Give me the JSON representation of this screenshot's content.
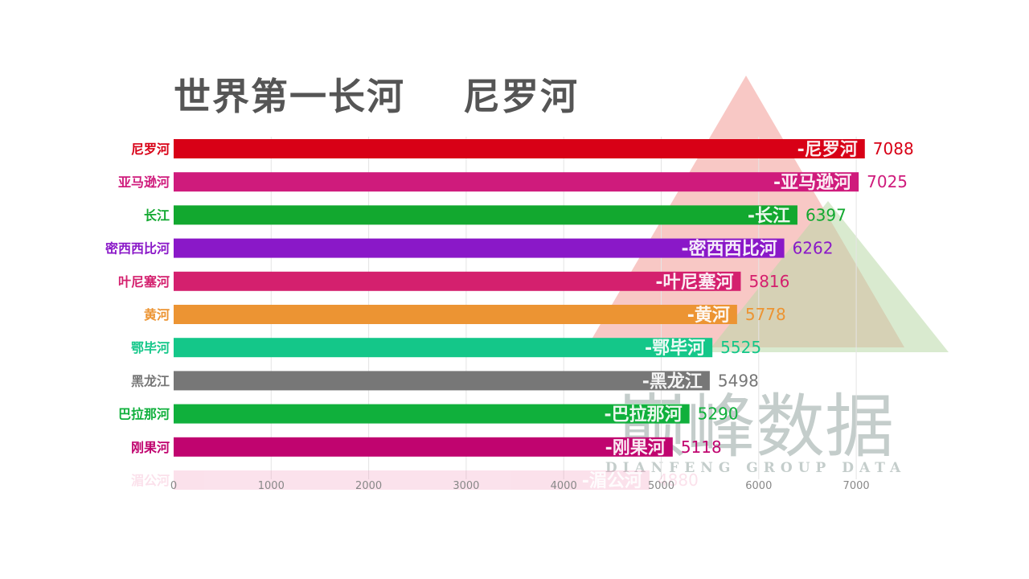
{
  "title": "世界第一长河",
  "subtitle": "尼罗河",
  "chart_data": {
    "type": "bar",
    "orientation": "horizontal",
    "categories": [
      "尼罗河",
      "亚马逊河",
      "长江",
      "密西西比河",
      "叶尼塞河",
      "黄河",
      "鄂毕河",
      "黑龙江",
      "巴拉那河",
      "刚果河",
      "湄公河"
    ],
    "values": [
      7088,
      7025,
      6397,
      6262,
      5816,
      5778,
      5525,
      5498,
      5290,
      5118,
      4880
    ],
    "bar_labels": [
      "-尼罗河",
      "-亚马逊河",
      "-长江",
      "-密西西比河",
      "-叶尼塞河",
      "-黄河",
      "-鄂毕河",
      "-黑龙江",
      "-巴拉那河",
      "-刚果河",
      "-湄公河"
    ],
    "value_labels": [
      "7088",
      "7025",
      "6397",
      "6262",
      "5816",
      "5778",
      "5525",
      "5498",
      "5290",
      "5118",
      "4880"
    ],
    "colors": [
      "#d80016",
      "#cf1b7c",
      "#12a82f",
      "#8a18c8",
      "#d4206e",
      "#ec9433",
      "#14c789",
      "#777777",
      "#10b03c",
      "#c0046f",
      "#f08ab2"
    ],
    "opacity": [
      1,
      1,
      1,
      1,
      1,
      1,
      1,
      1,
      1,
      1,
      0.25
    ],
    "xlim": [
      0,
      7500
    ],
    "xticks": [
      0,
      1000,
      2000,
      3000,
      4000,
      5000,
      6000,
      7000
    ],
    "xtick_labels": [
      "0",
      "1000",
      "2000",
      "3000",
      "4000",
      "5000",
      "6000",
      "7000"
    ],
    "grid": true
  },
  "watermark": {
    "text": "巅峰数据",
    "subtext": "DIANFENG GROUP DATA"
  }
}
